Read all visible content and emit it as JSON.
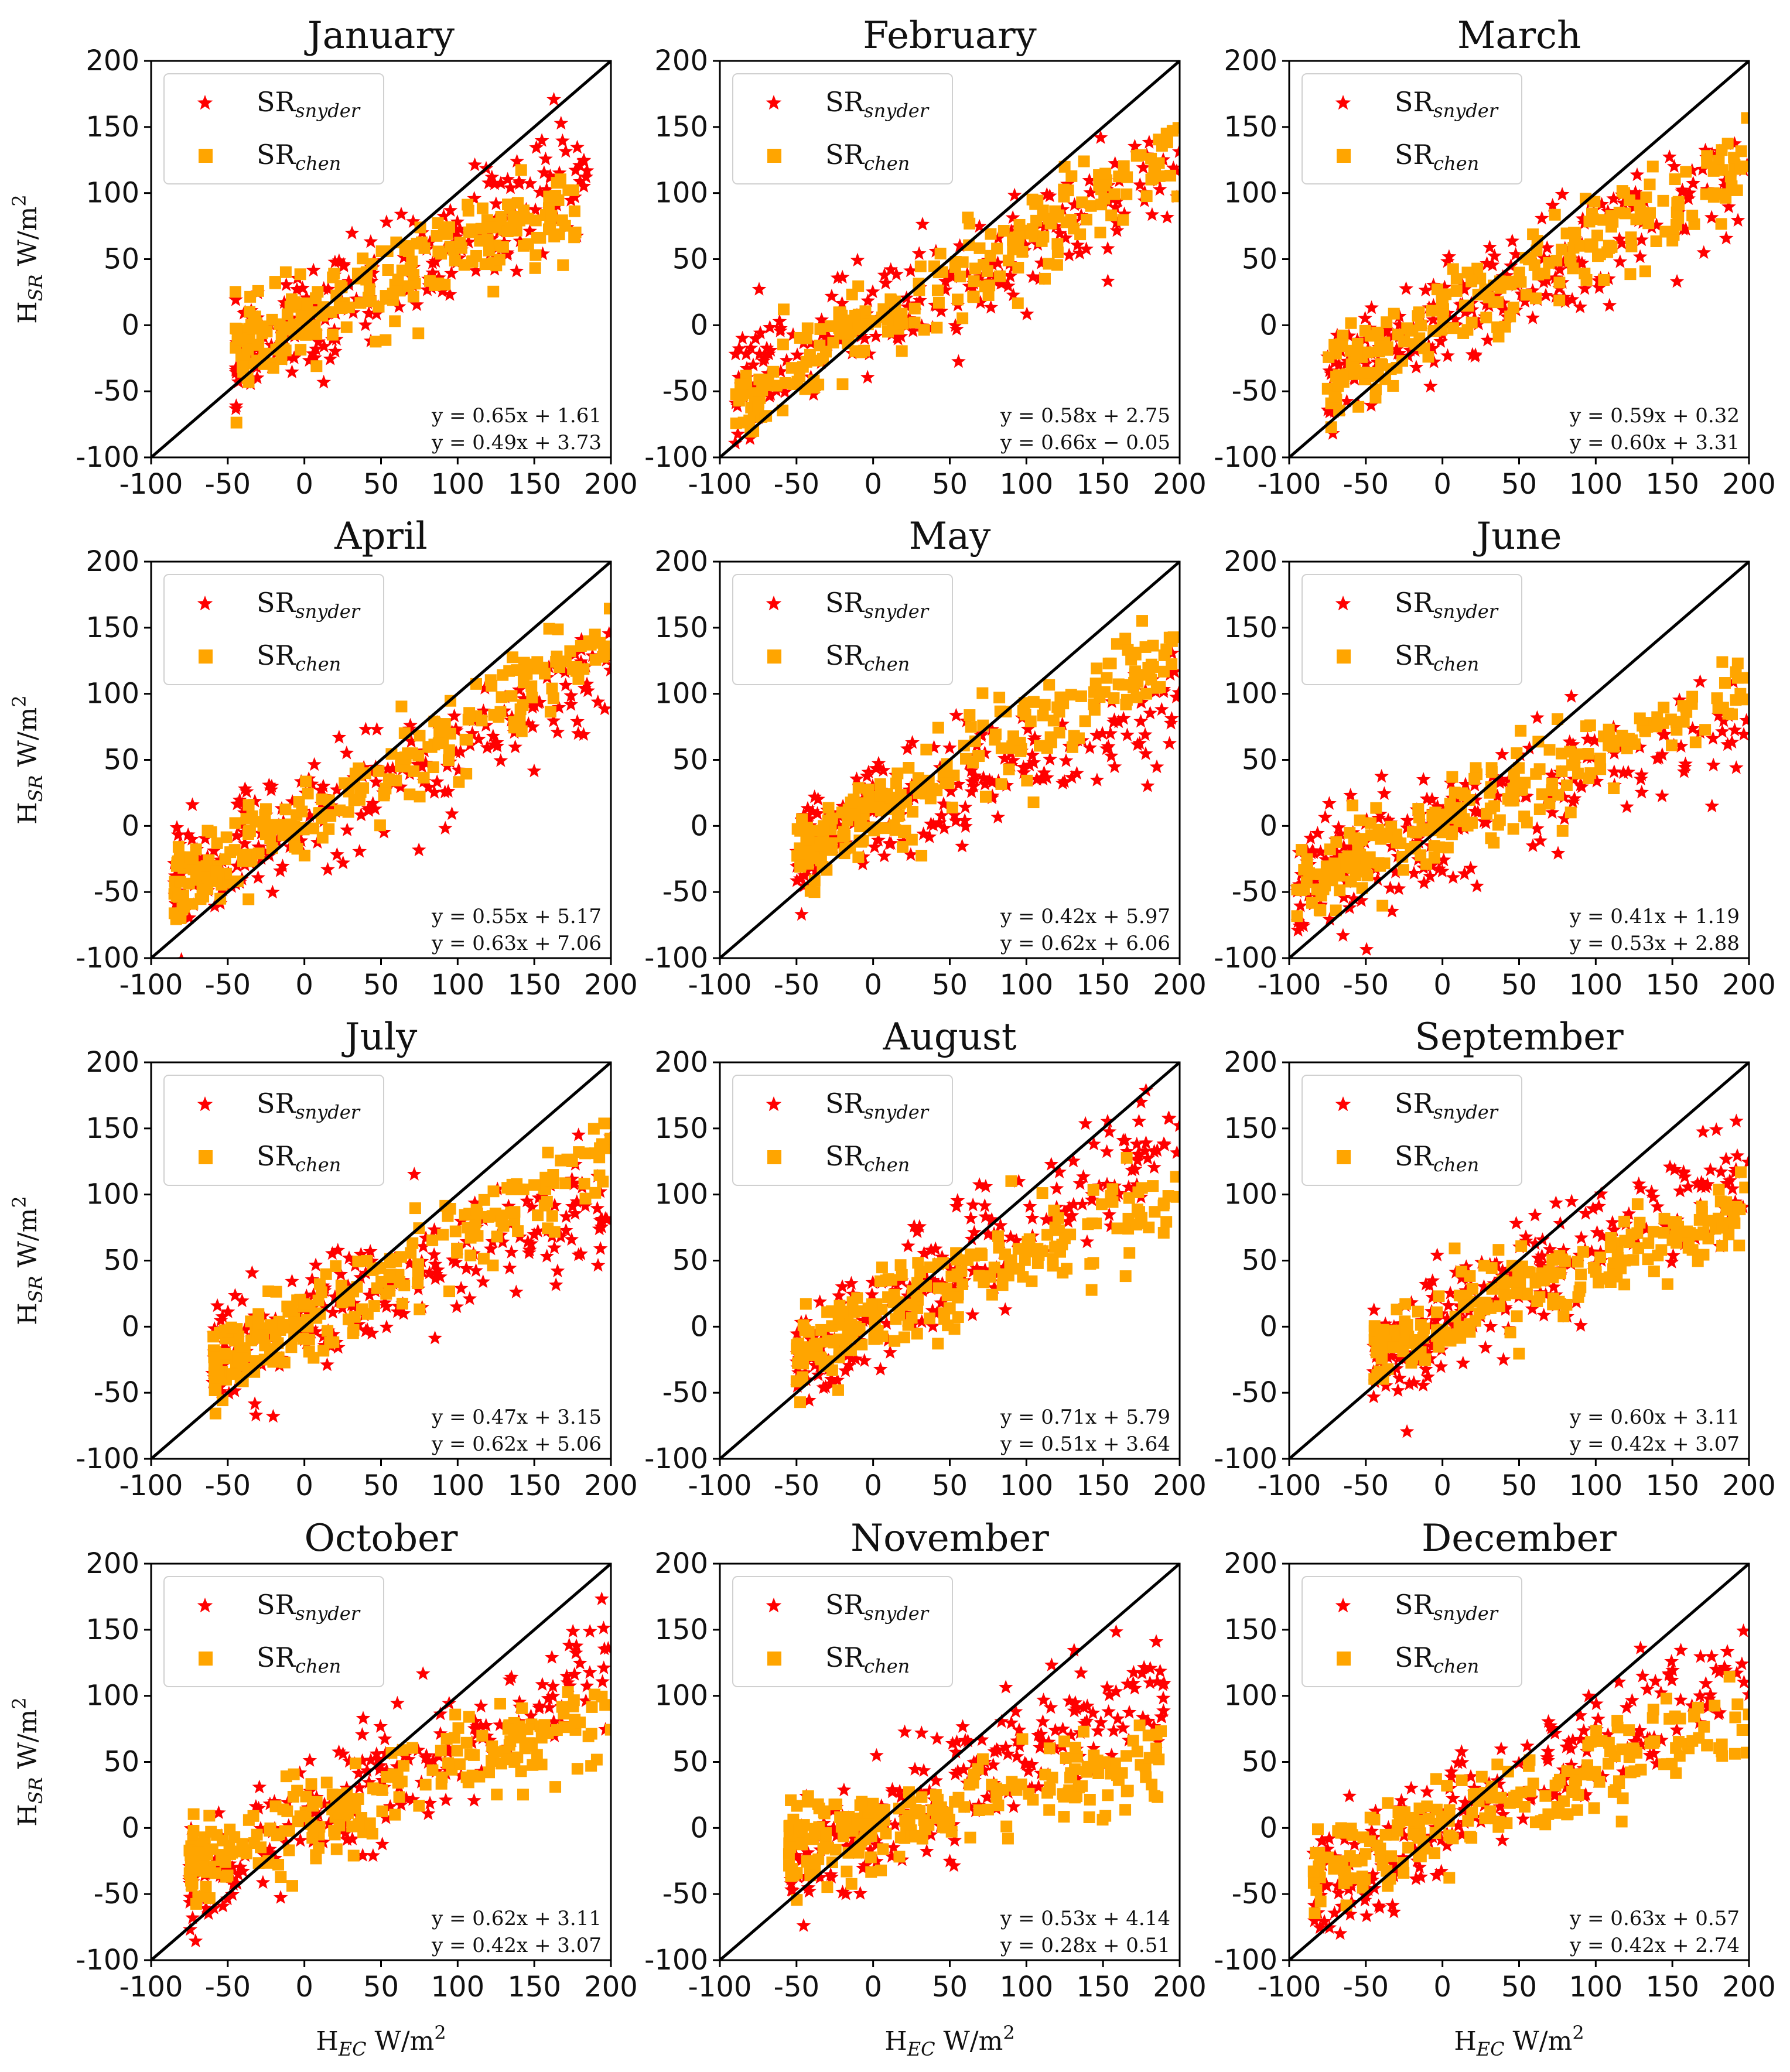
{
  "figure": {
    "ylabel": {
      "base": "H",
      "sub": "SR",
      "unit": " W/m",
      "sup": "2"
    },
    "xlabel": {
      "base": "H",
      "sub": "EC",
      "unit": " W/m",
      "sup": "2"
    },
    "legend": [
      {
        "base": "SR",
        "sub": "snyder",
        "color": "#ff0000",
        "marker": "star"
      },
      {
        "base": "SR",
        "sub": "chen",
        "color": "#ffa500",
        "marker": "square"
      }
    ],
    "colors": {
      "snyder": "#ff0000",
      "chen": "#ffa500",
      "line": "#000000"
    }
  },
  "chart_data": [
    {
      "type": "scatter",
      "title": "January",
      "xlim": [
        -100,
        200
      ],
      "ylim": [
        -100,
        200
      ],
      "ticks": [
        "-100",
        "-50",
        "0",
        "50",
        "100",
        "150",
        "200"
      ],
      "equations": [
        "y = 0.65x + 1.61",
        "y = 0.49x + 3.73"
      ],
      "fit_snyder": [
        0.65,
        1.61
      ],
      "fit_chen": [
        0.49,
        3.73
      ],
      "x_range": [
        -45,
        185
      ],
      "reference_line": "1:1"
    },
    {
      "type": "scatter",
      "title": "February",
      "xlim": [
        -100,
        200
      ],
      "ylim": [
        -100,
        200
      ],
      "ticks": [
        "-100",
        "-50",
        "0",
        "50",
        "100",
        "150",
        "200"
      ],
      "equations": [
        "y = 0.58x + 2.75",
        "y = 0.66x − 0.05"
      ],
      "fit_snyder": [
        0.58,
        2.75
      ],
      "fit_chen": [
        0.66,
        -0.05
      ],
      "x_range": [
        -90,
        200
      ],
      "reference_line": "1:1"
    },
    {
      "type": "scatter",
      "title": "March",
      "xlim": [
        -100,
        200
      ],
      "ylim": [
        -100,
        200
      ],
      "ticks": [
        "-100",
        "-50",
        "0",
        "50",
        "100",
        "150",
        "200"
      ],
      "equations": [
        "y = 0.59x + 0.32",
        "y = 0.60x + 3.31"
      ],
      "fit_snyder": [
        0.59,
        0.32
      ],
      "fit_chen": [
        0.6,
        3.31
      ],
      "x_range": [
        -75,
        200
      ],
      "reference_line": "1:1"
    },
    {
      "type": "scatter",
      "title": "April",
      "xlim": [
        -100,
        200
      ],
      "ylim": [
        -100,
        200
      ],
      "ticks": [
        "-100",
        "-50",
        "0",
        "50",
        "100",
        "150",
        "200"
      ],
      "equations": [
        "y = 0.55x + 5.17",
        "y = 0.63x + 7.06"
      ],
      "fit_snyder": [
        0.55,
        5.17
      ],
      "fit_chen": [
        0.63,
        7.06
      ],
      "x_range": [
        -85,
        200
      ],
      "reference_line": "1:1"
    },
    {
      "type": "scatter",
      "title": "May",
      "xlim": [
        -100,
        200
      ],
      "ylim": [
        -100,
        200
      ],
      "ticks": [
        "-100",
        "-50",
        "0",
        "50",
        "100",
        "150",
        "200"
      ],
      "equations": [
        "y = 0.42x + 5.97",
        "y = 0.62x + 6.06"
      ],
      "fit_snyder": [
        0.42,
        5.97
      ],
      "fit_chen": [
        0.62,
        6.06
      ],
      "x_range": [
        -50,
        200
      ],
      "reference_line": "1:1"
    },
    {
      "type": "scatter",
      "title": "June",
      "xlim": [
        -100,
        200
      ],
      "ylim": [
        -100,
        200
      ],
      "ticks": [
        "-100",
        "-50",
        "0",
        "50",
        "100",
        "150",
        "200"
      ],
      "equations": [
        "y = 0.41x + 1.19",
        "y = 0.53x + 2.88"
      ],
      "fit_snyder": [
        0.41,
        1.19
      ],
      "fit_chen": [
        0.53,
        2.88
      ],
      "x_range": [
        -95,
        200
      ],
      "reference_line": "1:1"
    },
    {
      "type": "scatter",
      "title": "July",
      "xlim": [
        -100,
        200
      ],
      "ylim": [
        -100,
        200
      ],
      "ticks": [
        "-100",
        "-50",
        "0",
        "50",
        "100",
        "150",
        "200"
      ],
      "equations": [
        "y = 0.47x + 3.15",
        "y = 0.62x + 5.06"
      ],
      "fit_snyder": [
        0.47,
        3.15
      ],
      "fit_chen": [
        0.62,
        5.06
      ],
      "x_range": [
        -60,
        200
      ],
      "reference_line": "1:1"
    },
    {
      "type": "scatter",
      "title": "August",
      "xlim": [
        -100,
        200
      ],
      "ylim": [
        -100,
        200
      ],
      "ticks": [
        "-100",
        "-50",
        "0",
        "50",
        "100",
        "150",
        "200"
      ],
      "equations": [
        "y = 0.71x + 5.79",
        "y = 0.51x + 3.64"
      ],
      "fit_snyder": [
        0.71,
        5.79
      ],
      "fit_chen": [
        0.51,
        3.64
      ],
      "x_range": [
        -50,
        200
      ],
      "reference_line": "1:1"
    },
    {
      "type": "scatter",
      "title": "September",
      "xlim": [
        -100,
        200
      ],
      "ylim": [
        -100,
        200
      ],
      "ticks": [
        "-100",
        "-50",
        "0",
        "50",
        "100",
        "150",
        "200"
      ],
      "equations": [
        "y = 0.60x + 3.11",
        "y = 0.42x + 3.07"
      ],
      "fit_snyder": [
        0.6,
        3.11
      ],
      "fit_chen": [
        0.42,
        3.07
      ],
      "x_range": [
        -45,
        200
      ],
      "reference_line": "1:1"
    },
    {
      "type": "scatter",
      "title": "October",
      "xlim": [
        -100,
        200
      ],
      "ylim": [
        -100,
        200
      ],
      "ticks": [
        "-100",
        "-50",
        "0",
        "50",
        "100",
        "150",
        "200"
      ],
      "equations": [
        "y = 0.62x + 3.11",
        "y = 0.42x + 3.07"
      ],
      "fit_snyder": [
        0.62,
        3.11
      ],
      "fit_chen": [
        0.42,
        3.07
      ],
      "x_range": [
        -75,
        200
      ],
      "reference_line": "1:1"
    },
    {
      "type": "scatter",
      "title": "November",
      "xlim": [
        -100,
        200
      ],
      "ylim": [
        -100,
        200
      ],
      "ticks": [
        "-100",
        "-50",
        "0",
        "50",
        "100",
        "150",
        "200"
      ],
      "equations": [
        "y = 0.53x + 4.14",
        "y = 0.28x + 0.51"
      ],
      "fit_snyder": [
        0.53,
        4.14
      ],
      "fit_chen": [
        0.28,
        0.51
      ],
      "x_range": [
        -55,
        190
      ],
      "reference_line": "1:1"
    },
    {
      "type": "scatter",
      "title": "December",
      "xlim": [
        -100,
        200
      ],
      "ylim": [
        -100,
        200
      ],
      "ticks": [
        "-100",
        "-50",
        "0",
        "50",
        "100",
        "150",
        "200"
      ],
      "equations": [
        "y = 0.63x + 0.57",
        "y = 0.42x + 2.74"
      ],
      "fit_snyder": [
        0.63,
        0.57
      ],
      "fit_chen": [
        0.42,
        2.74
      ],
      "x_range": [
        -85,
        200
      ],
      "reference_line": "1:1"
    }
  ]
}
